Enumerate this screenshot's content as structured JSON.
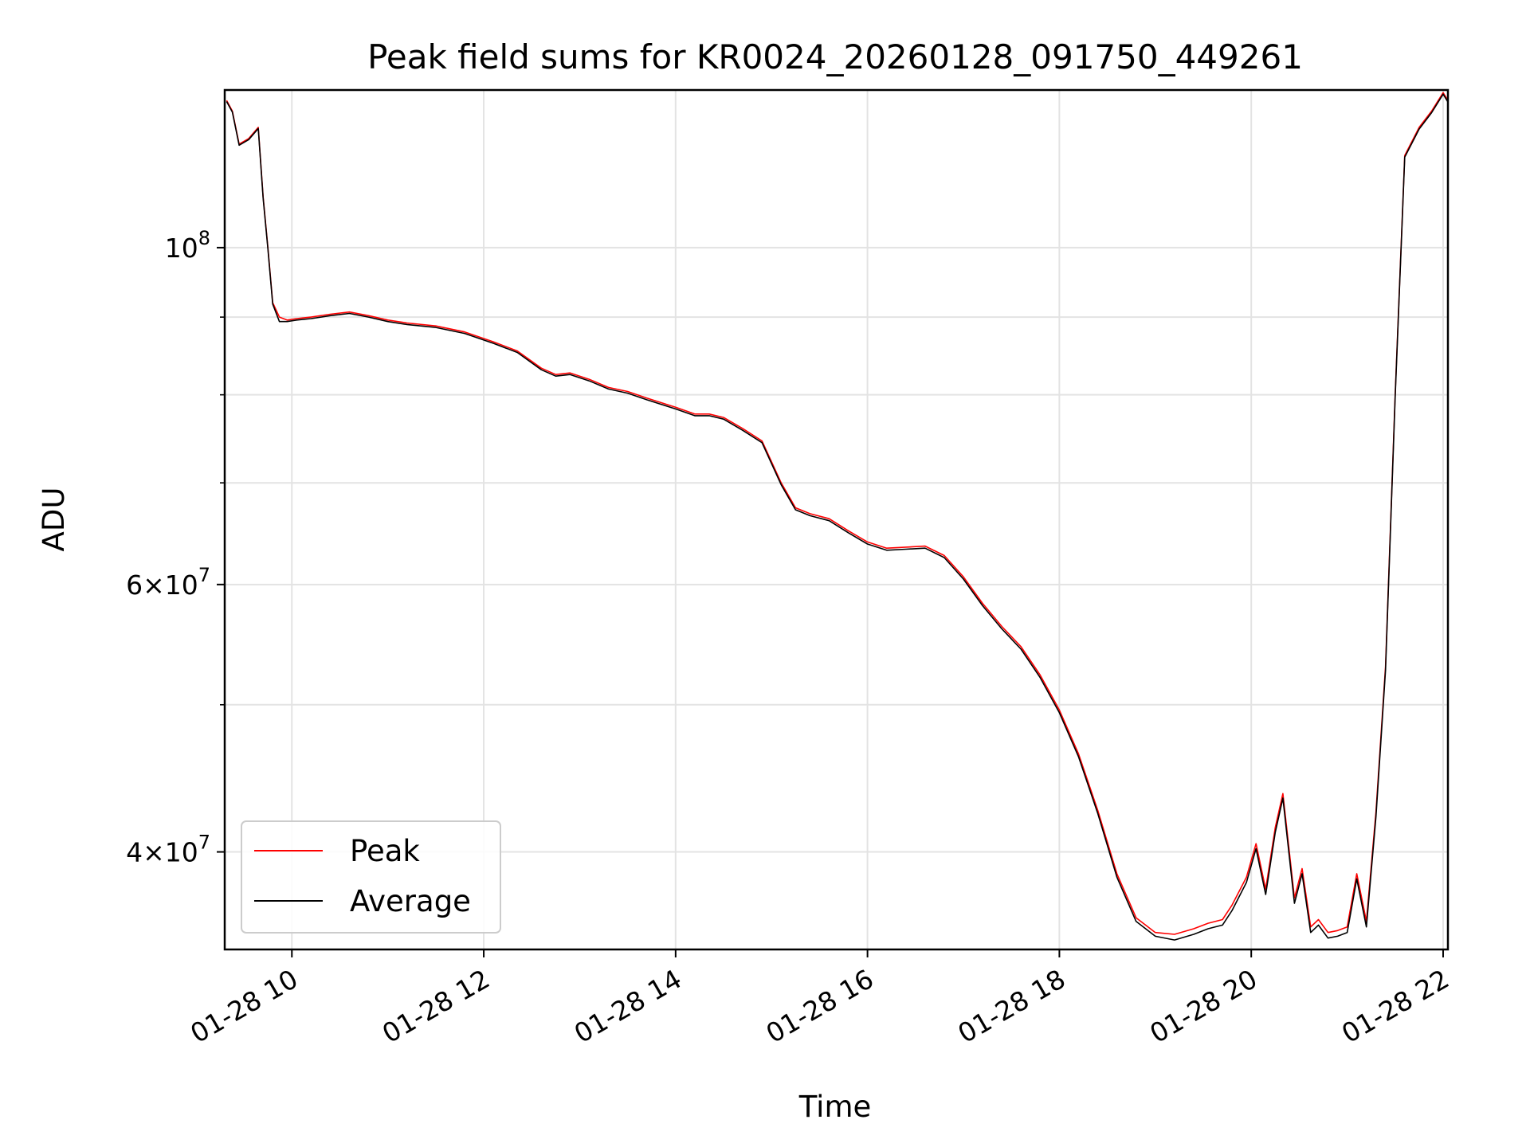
{
  "chart_data": {
    "type": "line",
    "title": "Peak field sums for KR0024_20260128_091750_449261",
    "xlabel": "Time",
    "ylabel": "ADU",
    "y_scale": "log",
    "x_range_hours": [
      9.3,
      22.05
    ],
    "ylim": [
      34500000,
      127000000
    ],
    "grid": true,
    "legend_position": "lower-left",
    "x_ticks": [
      {
        "value": 10,
        "label": "01-28 10"
      },
      {
        "value": 12,
        "label": "01-28 12"
      },
      {
        "value": 14,
        "label": "01-28 14"
      },
      {
        "value": 16,
        "label": "01-28 16"
      },
      {
        "value": 18,
        "label": "01-28 18"
      },
      {
        "value": 20,
        "label": "01-28 20"
      },
      {
        "value": 22,
        "label": "01-28 22"
      }
    ],
    "y_major_ticks": [
      {
        "value": 100000000,
        "base": "10",
        "exp": "8"
      },
      {
        "value": 60000000,
        "base": "6×10",
        "exp": "7"
      },
      {
        "value": 40000000,
        "base": "4×10",
        "exp": "7"
      }
    ],
    "y_minor_ticks": [
      50000000,
      70000000,
      80000000,
      90000000
    ],
    "colors": {
      "peak": "#ff0000",
      "average": "#000000"
    },
    "series": [
      {
        "name": "Peak",
        "color": "#ff0000",
        "x": [
          9.32,
          9.38,
          9.45,
          9.55,
          9.65,
          9.7,
          9.75,
          9.8,
          9.87,
          9.95,
          10.05,
          10.2,
          10.4,
          10.6,
          10.8,
          11.0,
          11.2,
          11.5,
          11.8,
          12.1,
          12.35,
          12.6,
          12.75,
          12.9,
          13.1,
          13.3,
          13.5,
          13.7,
          14.0,
          14.2,
          14.35,
          14.5,
          14.7,
          14.9,
          15.1,
          15.25,
          15.4,
          15.6,
          15.8,
          16.0,
          16.2,
          16.4,
          16.6,
          16.8,
          17.0,
          17.2,
          17.4,
          17.6,
          17.8,
          18.0,
          18.2,
          18.4,
          18.6,
          18.8,
          19.0,
          19.2,
          19.4,
          19.55,
          19.7,
          19.8,
          19.95,
          20.05,
          20.15,
          20.25,
          20.33,
          20.45,
          20.53,
          20.62,
          20.7,
          20.8,
          20.9,
          21.0,
          21.1,
          21.2,
          21.3,
          21.4,
          21.5,
          21.6,
          21.75,
          21.88,
          22.0,
          22.05
        ],
        "values": [
          125000000,
          123000000,
          117000000,
          118000000,
          120000000,
          108000000,
          100000000,
          92000000,
          90000000,
          89600000,
          89800000,
          90000000,
          90400000,
          90700000,
          90200000,
          89600000,
          89200000,
          88800000,
          88000000,
          86700000,
          85500000,
          83300000,
          82500000,
          82700000,
          81900000,
          80900000,
          80400000,
          79600000,
          78500000,
          77700000,
          77700000,
          77300000,
          76000000,
          74600000,
          70000000,
          67400000,
          66800000,
          66300000,
          65100000,
          64000000,
          63400000,
          63500000,
          63600000,
          62700000,
          60700000,
          58300000,
          56300000,
          54600000,
          52300000,
          49600000,
          46400000,
          42600000,
          38700000,
          36200000,
          35400000,
          35300000,
          35600000,
          35900000,
          36100000,
          36900000,
          38500000,
          40500000,
          37800000,
          41500000,
          43700000,
          37300000,
          39000000,
          35700000,
          36100000,
          35400000,
          35500000,
          35700000,
          38700000,
          36000000,
          42500000,
          53000000,
          80000000,
          115000000,
          120000000,
          123000000,
          126500000,
          125000000
        ]
      },
      {
        "name": "Average",
        "color": "#000000",
        "x": [
          9.32,
          9.38,
          9.45,
          9.55,
          9.65,
          9.7,
          9.75,
          9.8,
          9.87,
          9.95,
          10.05,
          10.2,
          10.4,
          10.6,
          10.8,
          11.0,
          11.2,
          11.5,
          11.8,
          12.1,
          12.35,
          12.6,
          12.75,
          12.9,
          13.1,
          13.3,
          13.5,
          13.7,
          14.0,
          14.2,
          14.35,
          14.5,
          14.7,
          14.9,
          15.1,
          15.25,
          15.4,
          15.6,
          15.8,
          16.0,
          16.2,
          16.4,
          16.6,
          16.8,
          17.0,
          17.2,
          17.4,
          17.6,
          17.8,
          18.0,
          18.2,
          18.4,
          18.6,
          18.8,
          19.0,
          19.2,
          19.4,
          19.55,
          19.7,
          19.8,
          19.95,
          20.05,
          20.15,
          20.25,
          20.33,
          20.45,
          20.53,
          20.62,
          20.7,
          20.8,
          20.9,
          21.0,
          21.1,
          21.2,
          21.3,
          21.4,
          21.5,
          21.6,
          21.75,
          21.88,
          22.0,
          22.05
        ],
        "values": [
          124800000,
          122800000,
          116800000,
          117800000,
          119800000,
          107800000,
          99800000,
          91800000,
          89400000,
          89400000,
          89600000,
          89800000,
          90200000,
          90500000,
          90000000,
          89400000,
          89000000,
          88600000,
          87800000,
          86500000,
          85300000,
          83100000,
          82300000,
          82500000,
          81700000,
          80700000,
          80200000,
          79400000,
          78300000,
          77500000,
          77500000,
          77100000,
          75800000,
          74400000,
          69800000,
          67200000,
          66600000,
          66100000,
          64900000,
          63800000,
          63200000,
          63300000,
          63400000,
          62500000,
          60500000,
          58100000,
          56100000,
          54400000,
          52100000,
          49400000,
          46200000,
          42400000,
          38500000,
          36000000,
          35200000,
          35000000,
          35300000,
          35600000,
          35800000,
          36600000,
          38200000,
          40200000,
          37500000,
          41200000,
          43400000,
          37000000,
          38700000,
          35400000,
          35800000,
          35100000,
          35200000,
          35400000,
          38400000,
          35700000,
          42200000,
          52700000,
          79700000,
          114700000,
          119700000,
          122700000,
          126200000,
          124700000
        ]
      }
    ]
  }
}
